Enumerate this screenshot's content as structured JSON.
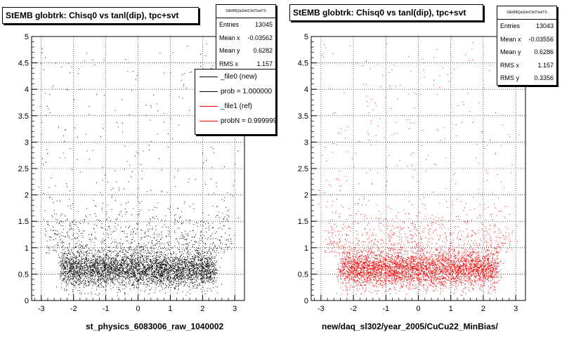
{
  "chart_data": [
    {
      "type": "scatter",
      "title": "StEMB globtrk: Chisq0 vs tanl(dip), tpc+svt",
      "xlabel": "st_physics_6083006_raw_1040002",
      "ylabel": "",
      "xlim": [
        -3.3,
        3.3
      ],
      "ylim": [
        0,
        5
      ],
      "xticks": [
        -3,
        -2,
        -1,
        0,
        1,
        2,
        3
      ],
      "yticks": [
        0,
        0.5,
        1,
        1.5,
        2,
        2.5,
        3,
        3.5,
        4,
        4.5,
        5
      ],
      "ytick_labels": [
        "0",
        "0.5",
        "1",
        "1.5",
        "2",
        "2.5",
        "3",
        "3.5",
        "4",
        "4.5",
        "5"
      ],
      "grid": true,
      "marker_color": "#000000",
      "stats": {
        "name": "StEMBQaGtrkChi0TanlTS",
        "entries_label": "Entries",
        "entries": "13045",
        "meanx_label": "Mean x",
        "meanx": "-0.03562",
        "meany_label": "Mean y",
        "meany": "0.6282",
        "rmsx_label": "RMS x",
        "rmsx": "1.157"
      },
      "legend": {
        "placement": "top-right",
        "entries": [
          {
            "label": "_file0 (new)",
            "color": "#000000"
          },
          {
            "label": "prob = 1.000000",
            "color": "#000000"
          },
          {
            "label": "_file1 (ref)",
            "color": "#ff0000"
          },
          {
            "label": "probN = 0.999999",
            "color": "#ff0000"
          }
        ]
      }
    },
    {
      "type": "scatter",
      "title": "StEMB globtrk: Chisq0 vs tanl(dip), tpc+svt",
      "xlabel": "new/daq_sl302/year_2005/CuCu22_MinBias/",
      "ylabel": "",
      "xlim": [
        -3.3,
        3.3
      ],
      "ylim": [
        0,
        5
      ],
      "xticks": [
        -3,
        -2,
        -1,
        0,
        1,
        2,
        3
      ],
      "yticks": [
        0,
        0.5,
        1,
        1.5,
        2,
        2.5,
        3,
        3.5,
        4,
        4.5,
        5
      ],
      "ytick_labels": [
        "0",
        "0.5",
        "1",
        "1.5",
        "2",
        "2.5",
        "3",
        "3.5",
        "4",
        "4.5",
        "5"
      ],
      "grid": true,
      "marker_color": "#ff0000",
      "stats": {
        "name": "StEMBQaGtrkChi0TanlTS",
        "entries_label": "Entries",
        "entries": "13043",
        "meanx_label": "Mean x",
        "meanx": "-0.03556",
        "meany_label": "Mean y",
        "meany": "0.6286",
        "rmsx_label": "RMS x",
        "rmsx": "1.157",
        "rmsy_label": "RMS y",
        "rmsy": "0.3356"
      }
    }
  ]
}
